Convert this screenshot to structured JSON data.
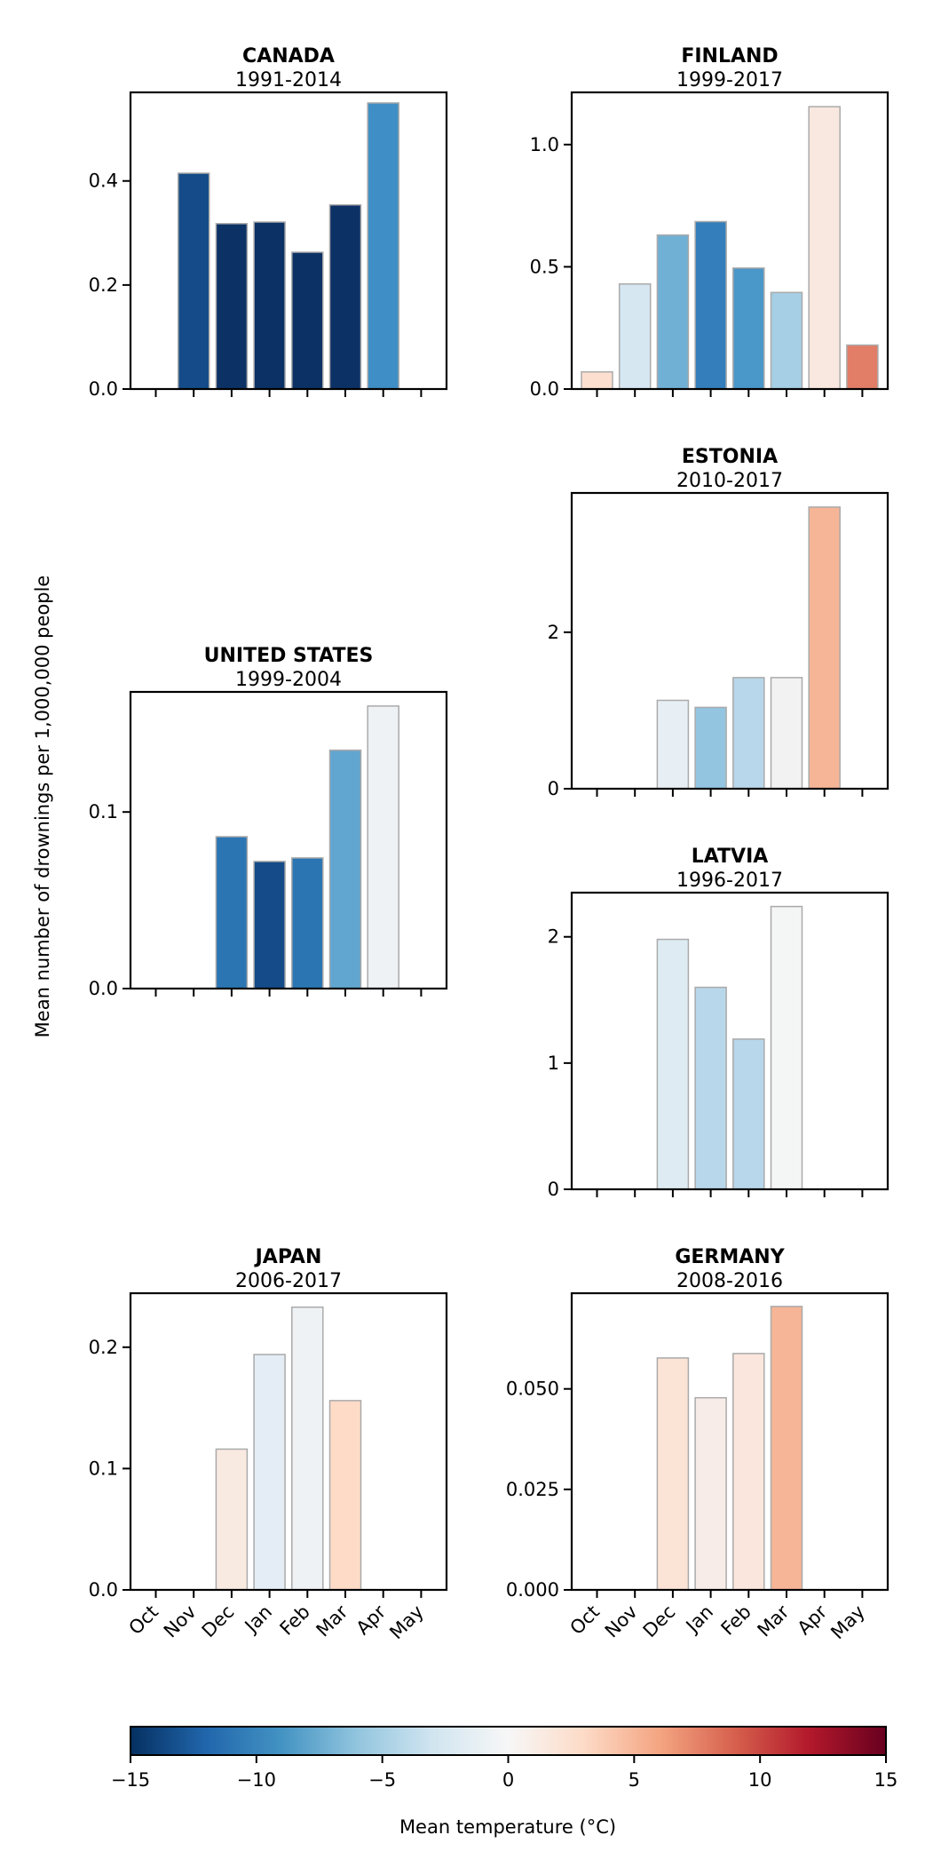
{
  "ylabel": "Mean number of drownings per 1,000,000 people",
  "months": [
    "Oct",
    "Nov",
    "Dec",
    "Jan",
    "Feb",
    "Mar",
    "Apr",
    "May"
  ],
  "colorbar": {
    "label": "Mean temperature (°C)",
    "range": [
      -15,
      15
    ],
    "ticks": [
      "−15",
      "−10",
      "−5",
      "0",
      "5",
      "10",
      "15"
    ],
    "tick_values": [
      -15,
      -10,
      -5,
      0,
      5,
      10,
      15
    ],
    "colormap": "RdBu_r",
    "stops": [
      "#053061",
      "#2166ac",
      "#4393c3",
      "#92c5de",
      "#d1e5f0",
      "#f7f7f7",
      "#fddbc7",
      "#f4a582",
      "#d6604d",
      "#b2182b",
      "#67001f"
    ]
  },
  "chart_data": [
    {
      "type": "bar",
      "title": "CANADA",
      "subtitle": "1991-2014",
      "position": "top-left",
      "categories": [
        "Oct",
        "Nov",
        "Dec",
        "Jan",
        "Feb",
        "Mar",
        "Apr",
        "May"
      ],
      "values": [
        null,
        0.415,
        0.318,
        0.321,
        0.263,
        0.354,
        0.55,
        null
      ],
      "colors": [
        null,
        "#144b88",
        "#0c3165",
        "#0c3165",
        "#0c3165",
        "#0c3165",
        "#3f8ec5",
        null
      ],
      "ylim": [
        0,
        0.5703
      ],
      "yticks": [
        0,
        0.2,
        0.4
      ],
      "ytick_labels": [
        "0.0",
        "0.2",
        "0.4"
      ],
      "show_xticklabels": false
    },
    {
      "type": "bar",
      "title": "FINLAND",
      "subtitle": "1999-2017",
      "position": "top-right",
      "categories": [
        "Oct",
        "Nov",
        "Dec",
        "Jan",
        "Feb",
        "Mar",
        "Apr",
        "May"
      ],
      "values": [
        0.07,
        0.43,
        0.63,
        0.685,
        0.495,
        0.395,
        1.155,
        0.18
      ],
      "colors": [
        "#fddfcf",
        "#d6e7f2",
        "#71b0d5",
        "#337ebb",
        "#4a97c9",
        "#a6cee4",
        "#f9e8e0",
        "#e27d67"
      ],
      "ylim": [
        0,
        1.2136
      ],
      "yticks": [
        0,
        0.5,
        1.0
      ],
      "ytick_labels": [
        "0.0",
        "0.5",
        "1.0"
      ],
      "show_xticklabels": false
    },
    {
      "type": "bar",
      "title": "ESTONIA",
      "subtitle": "2010-2017",
      "position": "middle-right-top",
      "categories": [
        "Oct",
        "Nov",
        "Dec",
        "Jan",
        "Feb",
        "Mar",
        "Apr",
        "May"
      ],
      "values": [
        null,
        null,
        1.13,
        1.04,
        1.42,
        1.42,
        3.6,
        null
      ],
      "colors": [
        null,
        null,
        "#e7eff5",
        "#93c5e0",
        "#b8d7ea",
        "#f2f2f2",
        "#f5b596",
        null
      ],
      "ylim": [
        0,
        3.78
      ],
      "yticks": [
        0,
        2
      ],
      "ytick_labels": [
        "0",
        "2"
      ],
      "show_xticklabels": false
    },
    {
      "type": "bar",
      "title": "UNITED STATES",
      "subtitle": "1999-2004",
      "position": "middle-left",
      "categories": [
        "Oct",
        "Nov",
        "Dec",
        "Jan",
        "Feb",
        "Mar",
        "Apr",
        "May"
      ],
      "values": [
        null,
        null,
        0.086,
        0.072,
        0.074,
        0.135,
        0.16,
        null
      ],
      "colors": [
        null,
        null,
        "#2b75b3",
        "#144b88",
        "#2b75b3",
        "#61a6d0",
        "#eef2f4",
        null
      ],
      "ylim": [
        0,
        0.168
      ],
      "yticks": [
        0,
        0.1
      ],
      "ytick_labels": [
        "0.0",
        "0.1"
      ],
      "show_xticklabels": false
    },
    {
      "type": "bar",
      "title": "LATVIA",
      "subtitle": "1996-2017",
      "position": "middle-right-bottom",
      "categories": [
        "Oct",
        "Nov",
        "Dec",
        "Jan",
        "Feb",
        "Mar",
        "Apr",
        "May"
      ],
      "values": [
        null,
        null,
        1.98,
        1.6,
        1.19,
        2.24,
        null,
        null
      ],
      "colors": [
        null,
        null,
        "#deebf3",
        "#b8d7ea",
        "#b8d7ea",
        "#f4f5f5",
        null,
        null
      ],
      "ylim": [
        0,
        2.35
      ],
      "yticks": [
        0,
        1,
        2
      ],
      "ytick_labels": [
        "0",
        "1",
        "2"
      ],
      "show_xticklabels": false
    },
    {
      "type": "bar",
      "title": "JAPAN",
      "subtitle": "2006-2017",
      "position": "bottom-left",
      "categories": [
        "Oct",
        "Nov",
        "Dec",
        "Jan",
        "Feb",
        "Mar",
        "Apr",
        "May"
      ],
      "values": [
        null,
        null,
        0.116,
        0.194,
        0.233,
        0.156,
        null,
        null
      ],
      "colors": [
        null,
        null,
        "#f8e9e1",
        "#e4edf5",
        "#eef2f5",
        "#fddbc7",
        null,
        null
      ],
      "ylim": [
        0,
        0.2445
      ],
      "yticks": [
        0,
        0.1,
        0.2
      ],
      "ytick_labels": [
        "0.0",
        "0.1",
        "0.2"
      ],
      "show_xticklabels": true
    },
    {
      "type": "bar",
      "title": "GERMANY",
      "subtitle": "2008-2016",
      "position": "bottom-right",
      "categories": [
        "Oct",
        "Nov",
        "Dec",
        "Jan",
        "Feb",
        "Mar",
        "Apr",
        "May"
      ],
      "values": [
        null,
        null,
        0.0577,
        0.0478,
        0.0588,
        0.0705,
        null,
        null
      ],
      "colors": [
        null,
        null,
        "#fbe3d6",
        "#f8ece8",
        "#fae6dd",
        "#f5b596",
        null,
        null
      ],
      "ylim": [
        0,
        0.0738
      ],
      "yticks": [
        0,
        0.025,
        0.05
      ],
      "ytick_labels": [
        "0.000",
        "0.025",
        "0.050"
      ],
      "show_xticklabels": true
    }
  ]
}
